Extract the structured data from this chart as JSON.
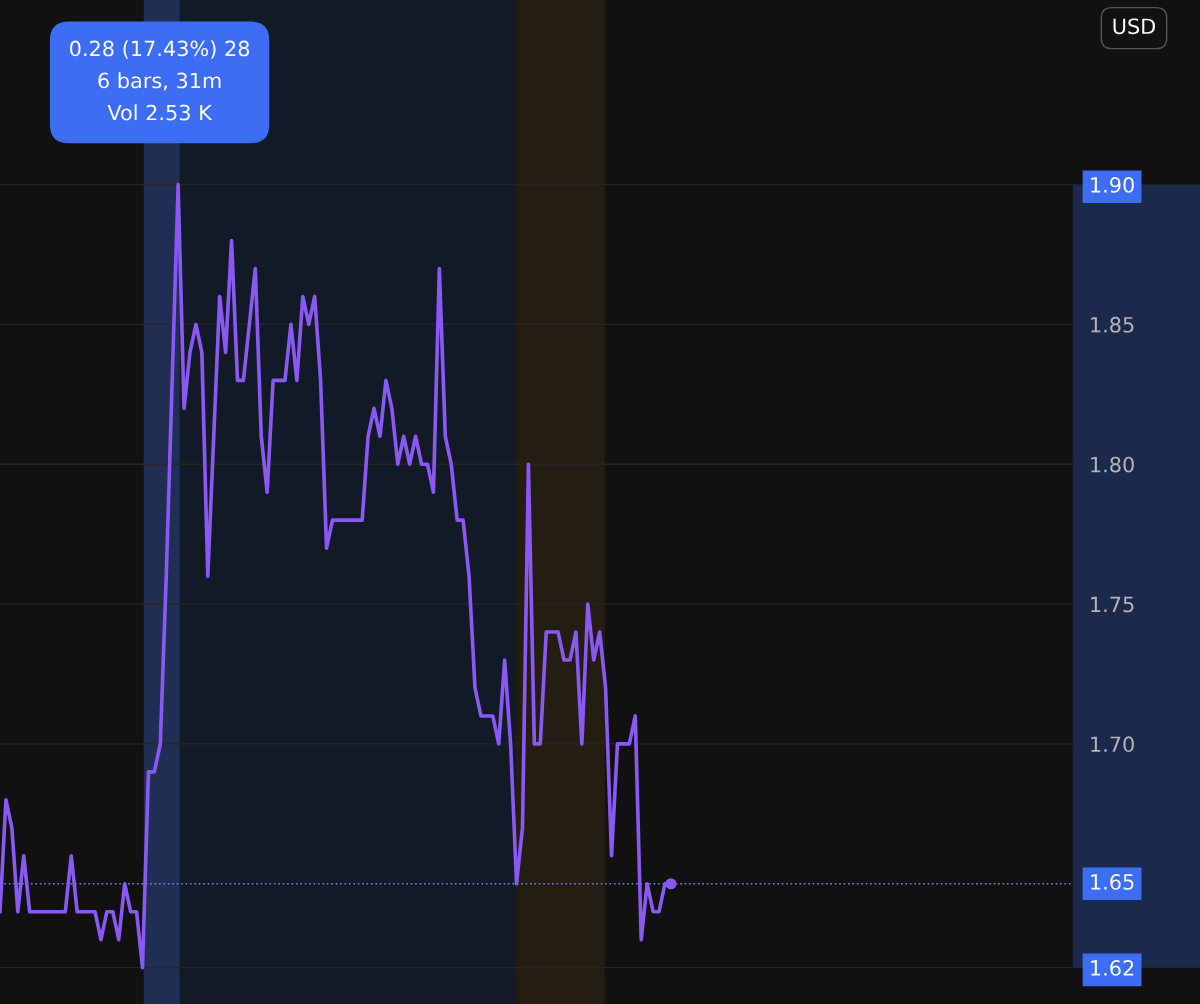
{
  "chart_data": {
    "type": "line",
    "categories": [
      null,
      null,
      null,
      null,
      null,
      null,
      null,
      null,
      null,
      null,
      null,
      null,
      null,
      null,
      null,
      null,
      null,
      null,
      null,
      null,
      null,
      null,
      null,
      null,
      null,
      null,
      null,
      null,
      null,
      null,
      null,
      null,
      null,
      null,
      null,
      null,
      null,
      null,
      null,
      null,
      null,
      null,
      null,
      null,
      null,
      null,
      null,
      null,
      null,
      null,
      null,
      null,
      null,
      null,
      null,
      null,
      null,
      null,
      null,
      null,
      null,
      null,
      null,
      null,
      null,
      null,
      null,
      null,
      null,
      null,
      null,
      null,
      null,
      null,
      null,
      null,
      null,
      null,
      null,
      null,
      null,
      null,
      null,
      null,
      null,
      null,
      null,
      null,
      null,
      null,
      null,
      null,
      null,
      null,
      null,
      null,
      null,
      null,
      null,
      null,
      null,
      null,
      null,
      null,
      null,
      null,
      null,
      null,
      null,
      null,
      null,
      null,
      null,
      null
    ],
    "series": [
      {
        "color": "#8a58f2",
        "values": [
          1.64,
          1.68,
          1.67,
          1.64,
          1.66,
          1.64,
          1.64,
          1.64,
          1.64,
          1.64,
          1.64,
          1.64,
          1.66,
          1.64,
          1.64,
          1.64,
          1.64,
          1.63,
          1.64,
          1.64,
          1.63,
          1.65,
          1.64,
          1.64,
          1.62,
          1.69,
          1.69,
          1.7,
          1.76,
          1.83,
          1.9,
          1.82,
          1.84,
          1.85,
          1.84,
          1.76,
          1.81,
          1.86,
          1.84,
          1.88,
          1.83,
          1.83,
          1.85,
          1.87,
          1.81,
          1.79,
          1.83,
          1.83,
          1.83,
          1.85,
          1.83,
          1.86,
          1.85,
          1.86,
          1.83,
          1.77,
          1.78,
          1.78,
          1.78,
          1.78,
          1.78,
          1.78,
          1.81,
          1.82,
          1.81,
          1.83,
          1.82,
          1.8,
          1.81,
          1.8,
          1.81,
          1.8,
          1.8,
          1.79,
          1.87,
          1.81,
          1.8,
          1.78,
          1.78,
          1.76,
          1.72,
          1.71,
          1.71,
          1.71,
          1.7,
          1.73,
          1.7,
          1.65,
          1.67,
          1.8,
          1.7,
          1.7,
          1.74,
          1.74,
          1.74,
          1.73,
          1.73,
          1.74,
          1.7,
          1.75,
          1.73,
          1.74,
          1.72,
          1.66,
          1.7,
          1.7,
          1.7,
          1.71,
          1.63,
          1.65,
          1.64,
          1.64,
          1.65,
          1.65
        ]
      }
    ],
    "ylim": [
      1.607,
      1.966
    ],
    "yticks": [
      {
        "value": 1.62,
        "label": "1.62"
      },
      {
        "value": 1.7,
        "label": "1.70"
      },
      1.75,
      {
        "value": 1.8,
        "label": "1.80"
      },
      1.85,
      {
        "value": 1.9,
        "label": "1.90"
      }
    ],
    "grid": "y",
    "ref_lines": [
      {
        "axis": "y",
        "value": 1.65,
        "label": "1.65",
        "color": "#5b8def",
        "line_style": "dotted"
      }
    ],
    "annotations": [
      "0.28 (17.43%) 28\n6 bars, 31m\nVol 2.53 K",
      "USD"
    ]
  }
}
